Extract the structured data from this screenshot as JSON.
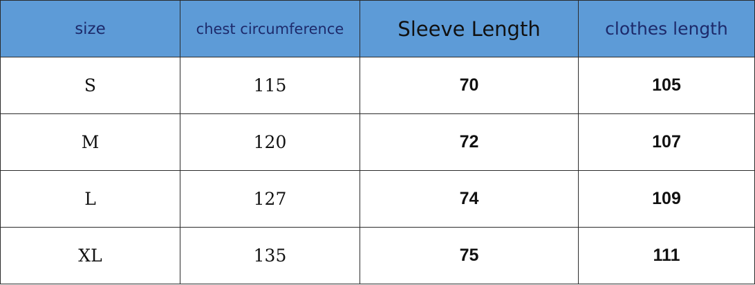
{
  "table": {
    "header": [
      "size",
      "chest circumference",
      "Sleeve Length",
      "clothes length"
    ],
    "rows": [
      [
        "S",
        "115",
        "70",
        "105"
      ],
      [
        "M",
        "120",
        "72",
        "107"
      ],
      [
        "L",
        "127",
        "74",
        "109"
      ],
      [
        "XL",
        "135",
        "75",
        "111"
      ]
    ]
  }
}
